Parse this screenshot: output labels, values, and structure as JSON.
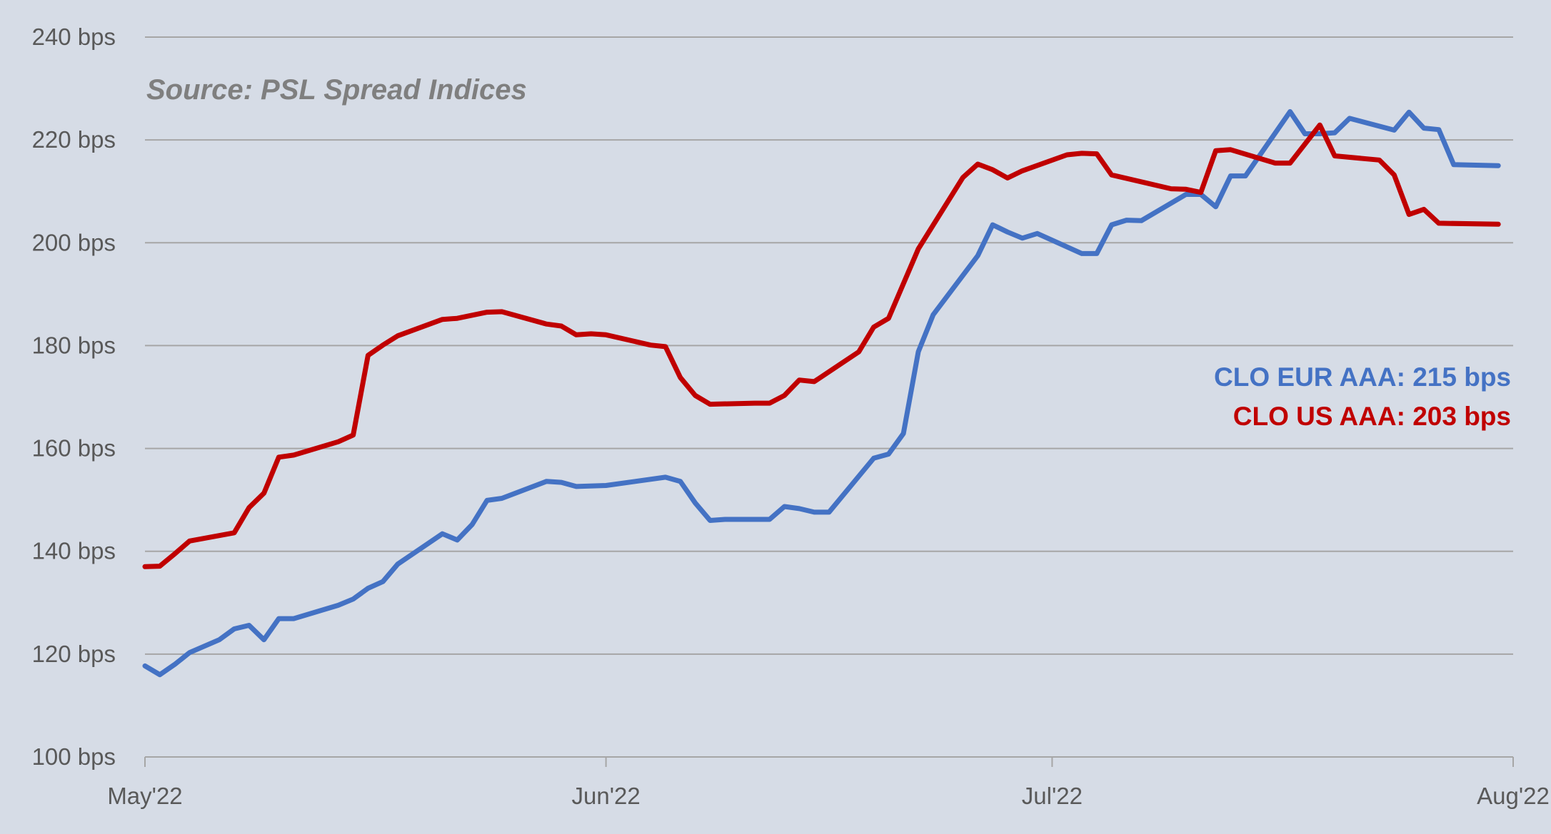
{
  "chart_data": {
    "type": "line",
    "source_note": "Source: PSL Spread Indices",
    "xlabel": "",
    "ylabel": "",
    "ylim": [
      100,
      240
    ],
    "yticks": [
      {
        "value": 100,
        "label": "100 bps"
      },
      {
        "value": 120,
        "label": "120 bps"
      },
      {
        "value": 140,
        "label": "140 bps"
      },
      {
        "value": 160,
        "label": "160 bps"
      },
      {
        "value": 180,
        "label": "180 bps"
      },
      {
        "value": 200,
        "label": "200 bps"
      },
      {
        "value": 220,
        "label": "220 bps"
      },
      {
        "value": 240,
        "label": "240 bps"
      }
    ],
    "xlim": [
      "2022-05-01",
      "2022-08-01"
    ],
    "xticks": [
      {
        "date": "2022-05-01",
        "label": "May'22"
      },
      {
        "date": "2022-06-01",
        "label": "Jun'22"
      },
      {
        "date": "2022-07-01",
        "label": "Jul'22"
      },
      {
        "date": "2022-08-01",
        "label": "Aug'22"
      }
    ],
    "grid": true,
    "legend_position": "right",
    "series": [
      {
        "name": "CLO EUR AAA",
        "legend_label": "CLO EUR AAA: 215 bps",
        "color": "#4472c4",
        "points": [
          [
            "2022-05-01",
            117.7
          ],
          [
            "2022-05-02",
            116.0
          ],
          [
            "2022-05-03",
            118.0
          ],
          [
            "2022-05-04",
            120.3
          ],
          [
            "2022-05-06",
            122.8
          ],
          [
            "2022-05-07",
            124.9
          ],
          [
            "2022-05-08",
            125.6
          ],
          [
            "2022-05-09",
            122.8
          ],
          [
            "2022-05-10",
            126.9
          ],
          [
            "2022-05-11",
            126.9
          ],
          [
            "2022-05-14",
            129.5
          ],
          [
            "2022-05-15",
            130.7
          ],
          [
            "2022-05-16",
            132.8
          ],
          [
            "2022-05-17",
            134.1
          ],
          [
            "2022-05-18",
            137.5
          ],
          [
            "2022-05-21",
            143.4
          ],
          [
            "2022-05-22",
            142.2
          ],
          [
            "2022-05-23",
            145.2
          ],
          [
            "2022-05-24",
            149.9
          ],
          [
            "2022-05-25",
            150.3
          ],
          [
            "2022-05-28",
            153.6
          ],
          [
            "2022-05-29",
            153.4
          ],
          [
            "2022-05-30",
            152.6
          ],
          [
            "2022-06-01",
            152.8
          ],
          [
            "2022-06-05",
            154.4
          ],
          [
            "2022-06-06",
            153.6
          ],
          [
            "2022-06-07",
            149.4
          ],
          [
            "2022-06-08",
            146.0
          ],
          [
            "2022-06-09",
            146.2
          ],
          [
            "2022-06-12",
            146.2
          ],
          [
            "2022-06-13",
            148.7
          ],
          [
            "2022-06-14",
            148.3
          ],
          [
            "2022-06-15",
            147.6
          ],
          [
            "2022-06-16",
            147.6
          ],
          [
            "2022-06-19",
            158.1
          ],
          [
            "2022-06-20",
            158.9
          ],
          [
            "2022-06-21",
            162.9
          ],
          [
            "2022-06-22",
            178.8
          ],
          [
            "2022-06-23",
            186.0
          ],
          [
            "2022-06-26",
            197.5
          ],
          [
            "2022-06-27",
            203.5
          ],
          [
            "2022-06-28",
            202.1
          ],
          [
            "2022-06-29",
            200.9
          ],
          [
            "2022-06-30",
            201.8
          ],
          [
            "2022-07-03",
            197.9
          ],
          [
            "2022-07-04",
            197.9
          ],
          [
            "2022-07-05",
            203.5
          ],
          [
            "2022-07-06",
            204.4
          ],
          [
            "2022-07-07",
            204.3
          ],
          [
            "2022-07-10",
            209.4
          ],
          [
            "2022-07-11",
            209.4
          ],
          [
            "2022-07-12",
            207.0
          ],
          [
            "2022-07-13",
            213.0
          ],
          [
            "2022-07-14",
            213.0
          ],
          [
            "2022-07-17",
            225.5
          ],
          [
            "2022-07-18",
            221.2
          ],
          [
            "2022-07-19",
            221.2
          ],
          [
            "2022-07-20",
            221.4
          ],
          [
            "2022-07-21",
            224.2
          ],
          [
            "2022-07-24",
            221.9
          ],
          [
            "2022-07-25",
            225.4
          ],
          [
            "2022-07-26",
            222.3
          ],
          [
            "2022-07-27",
            222.0
          ],
          [
            "2022-07-28",
            215.2
          ],
          [
            "2022-07-31",
            215.0
          ]
        ]
      },
      {
        "name": "CLO US AAA",
        "legend_label": "CLO US AAA: 203 bps",
        "color": "#c00000",
        "points": [
          [
            "2022-05-01",
            137.0
          ],
          [
            "2022-05-02",
            137.1
          ],
          [
            "2022-05-03",
            139.5
          ],
          [
            "2022-05-04",
            142.0
          ],
          [
            "2022-05-07",
            143.6
          ],
          [
            "2022-05-08",
            148.5
          ],
          [
            "2022-05-09",
            151.3
          ],
          [
            "2022-05-10",
            158.3
          ],
          [
            "2022-05-11",
            158.7
          ],
          [
            "2022-05-14",
            161.3
          ],
          [
            "2022-05-15",
            162.6
          ],
          [
            "2022-05-16",
            178.1
          ],
          [
            "2022-05-17",
            180.1
          ],
          [
            "2022-05-18",
            181.9
          ],
          [
            "2022-05-21",
            185.1
          ],
          [
            "2022-05-22",
            185.3
          ],
          [
            "2022-05-24",
            186.5
          ],
          [
            "2022-05-25",
            186.6
          ],
          [
            "2022-05-28",
            184.2
          ],
          [
            "2022-05-29",
            183.8
          ],
          [
            "2022-05-30",
            182.1
          ],
          [
            "2022-05-31",
            182.3
          ],
          [
            "2022-06-01",
            182.1
          ],
          [
            "2022-06-04",
            180.1
          ],
          [
            "2022-06-05",
            179.8
          ],
          [
            "2022-06-06",
            173.8
          ],
          [
            "2022-06-07",
            170.3
          ],
          [
            "2022-06-08",
            168.6
          ],
          [
            "2022-06-11",
            168.8
          ],
          [
            "2022-06-12",
            168.8
          ],
          [
            "2022-06-13",
            170.3
          ],
          [
            "2022-06-14",
            173.3
          ],
          [
            "2022-06-15",
            173.0
          ],
          [
            "2022-06-18",
            178.8
          ],
          [
            "2022-06-19",
            183.6
          ],
          [
            "2022-06-20",
            185.3
          ],
          [
            "2022-06-22",
            198.8
          ],
          [
            "2022-06-25",
            212.7
          ],
          [
            "2022-06-26",
            215.3
          ],
          [
            "2022-06-27",
            214.2
          ],
          [
            "2022-06-28",
            212.6
          ],
          [
            "2022-06-29",
            214.0
          ],
          [
            "2022-07-02",
            217.1
          ],
          [
            "2022-07-03",
            217.4
          ],
          [
            "2022-07-04",
            217.3
          ],
          [
            "2022-07-05",
            213.2
          ],
          [
            "2022-07-09",
            210.5
          ],
          [
            "2022-07-10",
            210.4
          ],
          [
            "2022-07-11",
            209.8
          ],
          [
            "2022-07-12",
            217.9
          ],
          [
            "2022-07-13",
            218.1
          ],
          [
            "2022-07-16",
            215.5
          ],
          [
            "2022-07-17",
            215.5
          ],
          [
            "2022-07-19",
            222.9
          ],
          [
            "2022-07-20",
            216.9
          ],
          [
            "2022-07-23",
            216.1
          ],
          [
            "2022-07-24",
            213.2
          ],
          [
            "2022-07-25",
            205.5
          ],
          [
            "2022-07-26",
            206.5
          ],
          [
            "2022-07-27",
            203.8
          ],
          [
            "2022-07-31",
            203.6
          ]
        ]
      }
    ]
  }
}
